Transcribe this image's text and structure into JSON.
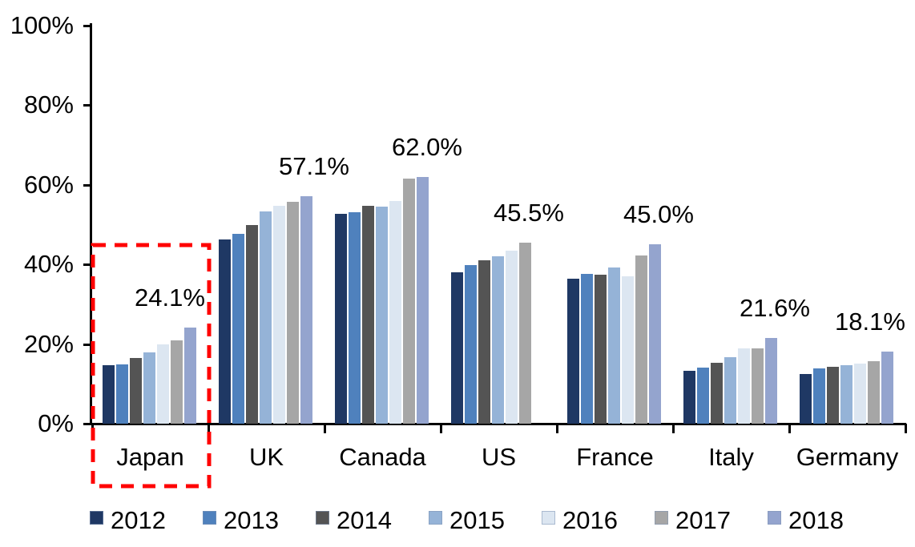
{
  "chart_data": {
    "type": "bar",
    "title": "",
    "categories": [
      "Japan",
      "UK",
      "Canada",
      "US",
      "France",
      "Italy",
      "Germany"
    ],
    "series": [
      {
        "name": "2012",
        "color": "#1F3864",
        "values": [
          14.7,
          46.3,
          52.8,
          38.0,
          36.5,
          13.2,
          12.4
        ]
      },
      {
        "name": "2013",
        "color": "#4F81BD",
        "values": [
          14.9,
          47.7,
          53.2,
          39.9,
          37.6,
          14.1,
          13.9
        ]
      },
      {
        "name": "2014",
        "color": "#545454",
        "values": [
          16.4,
          50.0,
          54.8,
          41.0,
          37.5,
          15.2,
          14.2
        ]
      },
      {
        "name": "2015",
        "color": "#95B3D7",
        "values": [
          17.9,
          53.3,
          54.6,
          42.0,
          39.2,
          16.7,
          14.6
        ]
      },
      {
        "name": "2016",
        "color": "#DCE6F1",
        "values": [
          19.9,
          54.8,
          56.0,
          43.5,
          37.1,
          18.9,
          15.1
        ]
      },
      {
        "name": "2017",
        "color": "#A6A6A6",
        "values": [
          21.0,
          55.7,
          61.5,
          45.5,
          42.3,
          19.0,
          15.7
        ]
      },
      {
        "name": "2018",
        "color": "#94A4CE",
        "values": [
          24.1,
          57.1,
          62.0,
          null,
          45.0,
          21.6,
          18.1
        ]
      }
    ],
    "annotations": [
      {
        "category": "Japan",
        "text": "24.1%",
        "value": 24.1
      },
      {
        "category": "UK",
        "text": "57.1%",
        "value": 57.1
      },
      {
        "category": "Canada",
        "text": "62.0%",
        "value": 62.0
      },
      {
        "category": "US",
        "text": "45.5%",
        "value": 45.5
      },
      {
        "category": "France",
        "text": "45.0%",
        "value": 45.0
      },
      {
        "category": "Italy",
        "text": "21.6%",
        "value": 21.6
      },
      {
        "category": "Germany",
        "text": "18.1%",
        "value": 18.1
      }
    ],
    "y_axis": {
      "min": 0,
      "max": 100,
      "tick_interval": 20,
      "tick_labels": [
        "0%",
        "20%",
        "40%",
        "60%",
        "80%",
        "100%"
      ],
      "grid": false
    },
    "legend": {
      "position": "bottom",
      "entries": [
        "2012",
        "2013",
        "2014",
        "2015",
        "2016",
        "2017",
        "2018"
      ]
    },
    "highlight": {
      "target_category": "Japan",
      "style": "dashed-rectangle",
      "color": "#FF0000"
    }
  }
}
